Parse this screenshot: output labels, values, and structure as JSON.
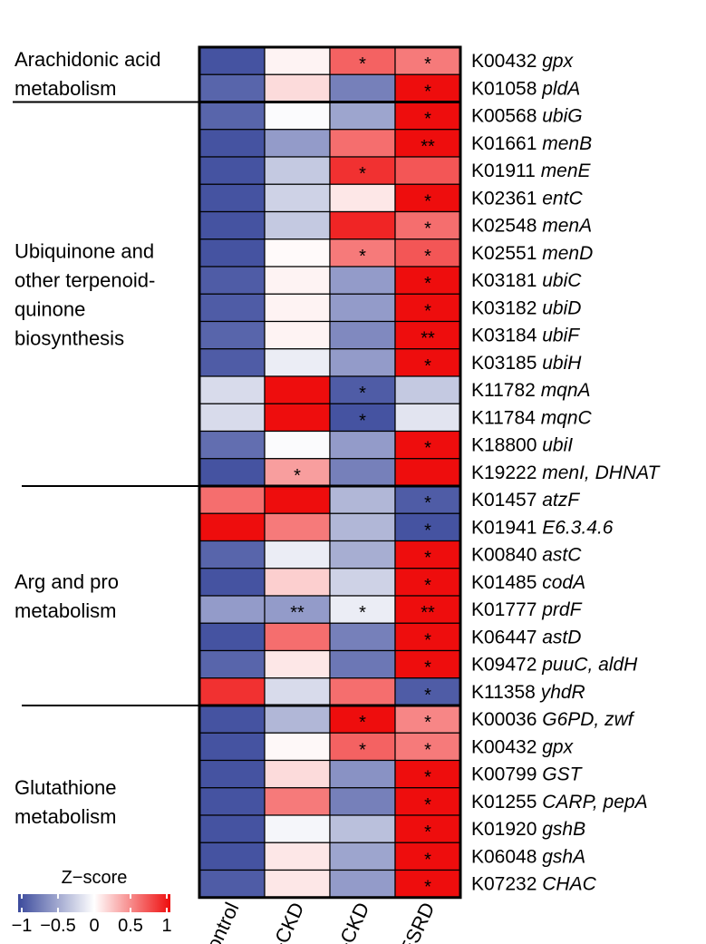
{
  "chart_data": {
    "type": "heatmap",
    "legend_title": "Z−score",
    "legend_ticks": [
      "−1",
      "−0.5",
      "0",
      "0.5",
      "1"
    ],
    "color_scale": {
      "min": -1,
      "max": 1,
      "low": "#3b4a9c",
      "mid": "#ffffff",
      "high": "#ee0d0d"
    },
    "columns": [
      "Control",
      "Mild-CKD",
      "Mod-CKD",
      "ESRD"
    ],
    "groups": [
      {
        "label": [
          "Arachidonic acid",
          "metabolism"
        ],
        "rows": [
          0,
          1
        ]
      },
      {
        "label": [
          "Ubiquinone and",
          "other terpenoid-",
          "quinone",
          "biosynthesis"
        ],
        "rows": [
          2,
          15
        ]
      },
      {
        "label": [
          "Arg and pro",
          "metabolism"
        ],
        "rows": [
          16,
          23
        ]
      },
      {
        "label": [
          "Glutathione",
          "metabolism"
        ],
        "rows": [
          24,
          30
        ]
      }
    ],
    "rows": [
      {
        "id": "K00432",
        "gene": "gpx",
        "values": [
          -0.95,
          0.05,
          0.65,
          0.55
        ],
        "stars": [
          "",
          "",
          "*",
          "*"
        ]
      },
      {
        "id": "K01058",
        "gene": "pldA",
        "values": [
          -0.85,
          0.15,
          -0.7,
          1.0
        ],
        "stars": [
          "",
          "",
          "",
          "*"
        ]
      },
      {
        "id": "K00568",
        "gene": "ubiG",
        "values": [
          -0.85,
          -0.02,
          -0.5,
          1.0
        ],
        "stars": [
          "",
          "",
          "",
          "*"
        ]
      },
      {
        "id": "K01661",
        "gene": "menB",
        "values": [
          -0.95,
          -0.55,
          0.6,
          1.0
        ],
        "stars": [
          "",
          "",
          "",
          "**"
        ]
      },
      {
        "id": "K01911",
        "gene": "menE",
        "values": [
          -0.95,
          -0.3,
          0.85,
          0.7
        ],
        "stars": [
          "",
          "",
          "*",
          ""
        ]
      },
      {
        "id": "K02361",
        "gene": "entC",
        "values": [
          -0.95,
          -0.25,
          0.1,
          1.0
        ],
        "stars": [
          "",
          "",
          "",
          "*"
        ]
      },
      {
        "id": "K02548",
        "gene": "menA",
        "values": [
          -0.95,
          -0.3,
          0.9,
          0.6
        ],
        "stars": [
          "",
          "",
          "",
          "*"
        ]
      },
      {
        "id": "K02551",
        "gene": "menD",
        "values": [
          -0.95,
          0.02,
          0.55,
          0.7
        ],
        "stars": [
          "",
          "",
          "*",
          "*"
        ]
      },
      {
        "id": "K03181",
        "gene": "ubiC",
        "values": [
          -0.9,
          0.05,
          -0.55,
          1.0
        ],
        "stars": [
          "",
          "",
          "",
          "*"
        ]
      },
      {
        "id": "K03182",
        "gene": "ubiD",
        "values": [
          -0.9,
          0.05,
          -0.55,
          1.0
        ],
        "stars": [
          "",
          "",
          "",
          "*"
        ]
      },
      {
        "id": "K03184",
        "gene": "ubiF",
        "values": [
          -0.85,
          0.05,
          -0.65,
          1.0
        ],
        "stars": [
          "",
          "",
          "",
          "**"
        ]
      },
      {
        "id": "K03185",
        "gene": "ubiH",
        "values": [
          -0.9,
          -0.1,
          -0.55,
          1.0
        ],
        "stars": [
          "",
          "",
          "",
          "*"
        ]
      },
      {
        "id": "K11782",
        "gene": "mqnA",
        "values": [
          -0.2,
          1.0,
          -0.9,
          -0.3
        ],
        "stars": [
          "",
          "",
          "*",
          ""
        ]
      },
      {
        "id": "K11784",
        "gene": "mqnC",
        "values": [
          -0.2,
          1.0,
          -0.95,
          -0.15
        ],
        "stars": [
          "",
          "",
          "*",
          ""
        ]
      },
      {
        "id": "K18800",
        "gene": "ubiI",
        "values": [
          -0.8,
          -0.02,
          -0.55,
          1.0
        ],
        "stars": [
          "",
          "",
          "",
          "*"
        ]
      },
      {
        "id": "K19222",
        "gene": "menI, DHNAT",
        "values": [
          -0.95,
          0.4,
          -0.7,
          1.0
        ],
        "stars": [
          "",
          "*",
          "",
          ""
        ]
      },
      {
        "id": "K01457",
        "gene": "atzF",
        "values": [
          0.6,
          1.0,
          -0.4,
          -0.9
        ],
        "stars": [
          "",
          "",
          "",
          "*"
        ]
      },
      {
        "id": "K01941",
        "gene": "E6.3.4.6",
        "values": [
          1.0,
          0.55,
          -0.4,
          -0.95
        ],
        "stars": [
          "",
          "",
          "",
          "*"
        ]
      },
      {
        "id": "K00840",
        "gene": "astC",
        "values": [
          -0.85,
          -0.1,
          -0.45,
          1.0
        ],
        "stars": [
          "",
          "",
          "",
          "*"
        ]
      },
      {
        "id": "K01485",
        "gene": "codA",
        "values": [
          -0.95,
          0.2,
          -0.25,
          1.0
        ],
        "stars": [
          "",
          "",
          "",
          "*"
        ]
      },
      {
        "id": "K01777",
        "gene": "prdF",
        "values": [
          -0.55,
          -0.55,
          -0.1,
          1.0
        ],
        "stars": [
          "",
          "**",
          "*",
          "**"
        ]
      },
      {
        "id": "K06447",
        "gene": "astD",
        "values": [
          -0.95,
          0.6,
          -0.7,
          1.0
        ],
        "stars": [
          "",
          "",
          "",
          "*"
        ]
      },
      {
        "id": "K09472",
        "gene": "puuC, aldH",
        "values": [
          -0.85,
          0.1,
          -0.75,
          1.0
        ],
        "stars": [
          "",
          "",
          "",
          "*"
        ]
      },
      {
        "id": "K11358",
        "gene": "yhdR",
        "values": [
          0.85,
          -0.2,
          0.6,
          -0.9
        ],
        "stars": [
          "",
          "",
          "",
          "*"
        ]
      },
      {
        "id": "K00036",
        "gene": "G6PD, zwf",
        "values": [
          -0.95,
          -0.4,
          1.0,
          0.5
        ],
        "stars": [
          "",
          "",
          "*",
          "*"
        ]
      },
      {
        "id": "K00432",
        "gene": "gpx",
        "values": [
          -0.95,
          0.03,
          0.65,
          0.55
        ],
        "stars": [
          "",
          "",
          "*",
          "*"
        ]
      },
      {
        "id": "K00799",
        "gene": "GST",
        "values": [
          -0.95,
          0.15,
          -0.6,
          1.0
        ],
        "stars": [
          "",
          "",
          "",
          "*"
        ]
      },
      {
        "id": "K01255",
        "gene": "CARP, pepA",
        "values": [
          -0.95,
          0.55,
          -0.7,
          1.0
        ],
        "stars": [
          "",
          "",
          "",
          "*"
        ]
      },
      {
        "id": "K01920",
        "gene": "gshB",
        "values": [
          -0.95,
          -0.05,
          -0.35,
          1.0
        ],
        "stars": [
          "",
          "",
          "",
          "*"
        ]
      },
      {
        "id": "K06048",
        "gene": "gshA",
        "values": [
          -0.95,
          0.1,
          -0.5,
          1.0
        ],
        "stars": [
          "",
          "",
          "",
          "*"
        ]
      },
      {
        "id": "K07232",
        "gene": "CHAC",
        "values": [
          -0.9,
          0.1,
          -0.55,
          1.0
        ],
        "stars": [
          "",
          "",
          "",
          "*"
        ]
      }
    ]
  }
}
